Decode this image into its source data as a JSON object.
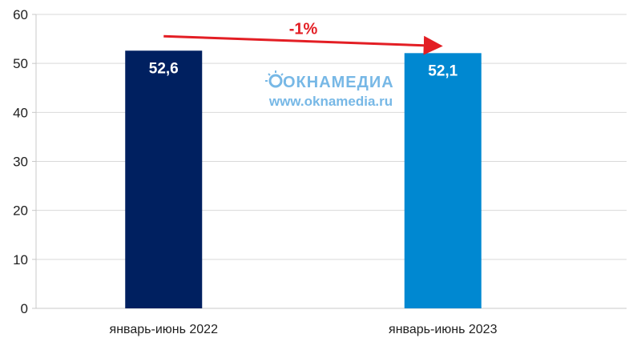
{
  "chart_data": {
    "type": "bar",
    "title": "",
    "xlabel": "",
    "ylabel": "",
    "ylim": [
      0,
      60
    ],
    "yticks": [
      0,
      10,
      20,
      30,
      40,
      50,
      60
    ],
    "grid": true,
    "legend": "none",
    "categories": [
      "январь-июнь 2022",
      "январь-июнь 2023"
    ],
    "values": [
      52.6,
      52.1
    ],
    "value_labels": [
      "52,6",
      "52,1"
    ],
    "bar_colors": [
      "#002060",
      "#0088d1"
    ],
    "annotation": {
      "text": "-1%",
      "color": "#e31e24",
      "arrow_from_category": 0,
      "arrow_to_category": 1
    }
  },
  "watermark": {
    "brand": "ОКНАМЕДИА",
    "url": "www.oknamedia.ru",
    "color": "#77b8e6"
  }
}
